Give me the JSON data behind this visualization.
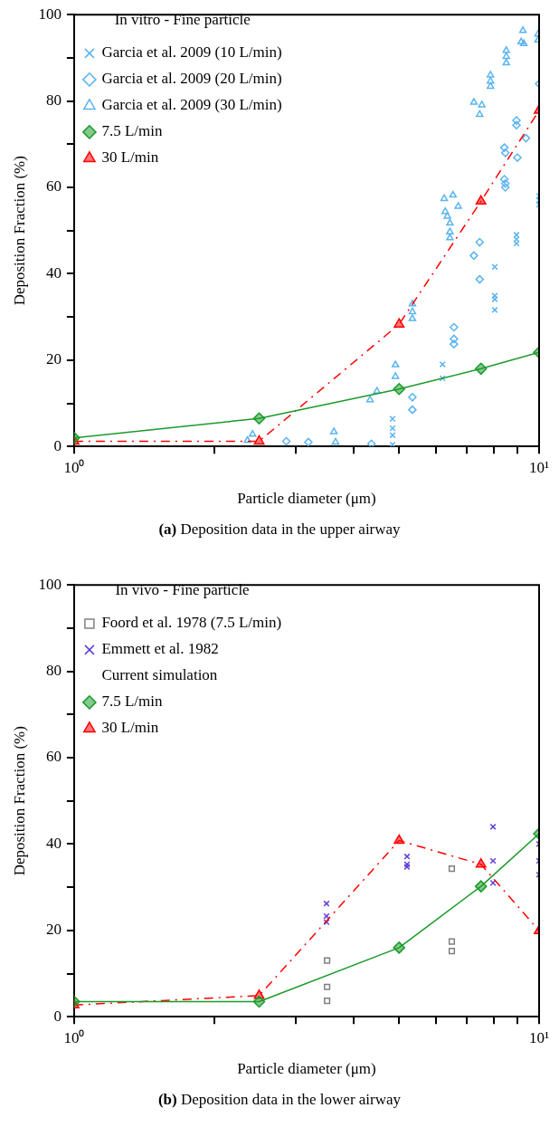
{
  "chart_data": [
    {
      "type": "line",
      "title": "(a) Deposition data in the upper airway",
      "xlabel": "Particle diameter (μm)",
      "ylabel": "Deposition Fraction (%)",
      "legend_title": "In vitro - Fine particle",
      "log": "x",
      "grid": false,
      "legend": "top left",
      "xlim": [
        1,
        10
      ],
      "xticks": [
        {
          "value": 1,
          "label": "10⁰"
        },
        {
          "value": 2,
          "label": null
        },
        {
          "value": 3,
          "label": null
        },
        {
          "value": 4,
          "label": null
        },
        {
          "value": 5,
          "label": null
        },
        {
          "value": 6,
          "label": null
        },
        {
          "value": 7,
          "label": null
        },
        {
          "value": 8,
          "label": null
        },
        {
          "value": 9,
          "label": null
        },
        {
          "value": 10,
          "label": "10¹"
        }
      ],
      "ylim": [
        0,
        100
      ],
      "yticks": [
        0,
        {
          "value": 10,
          "label": null
        },
        20,
        {
          "value": 30,
          "label": null
        },
        40,
        {
          "value": 50,
          "label": null
        },
        60,
        {
          "value": 70,
          "label": null
        },
        80,
        {
          "value": 90,
          "label": null
        },
        100
      ],
      "series": [
        {
          "name": "Garcia et al. 2009 (10 L/min)",
          "type": "scatter",
          "marker": "cross",
          "color": "#5ab4f0",
          "x": [
            4.84,
            4.84,
            4.84,
            4.84,
            6.2,
            6.2,
            8.03,
            8.03,
            8.03,
            8.03,
            8.94,
            8.94,
            8.94,
            10,
            10,
            10
          ],
          "values": [
            6.4,
            4.2,
            2.6,
            0.4,
            19,
            15.8,
            41.6,
            34.9,
            34.1,
            31.6,
            49,
            48,
            47,
            58,
            57,
            56
          ]
        },
        {
          "name": "Garcia et al. 2009 (20 L/min)",
          "type": "scatter",
          "marker": "diamond",
          "color": "#5ab4f0",
          "x": [
            2.86,
            3.19,
            4.36,
            5.34,
            5.34,
            6.56,
            6.56,
            6.56,
            7.45,
            7.24,
            7.45,
            8.42,
            8.46,
            8.98,
            8.42,
            8.46,
            8.46,
            8.94,
            8.94,
            9.37,
            10
          ],
          "values": [
            1.2,
            1,
            0.6,
            11.4,
            8.5,
            27.6,
            24.9,
            23.7,
            47.3,
            44.2,
            38.7,
            69.2,
            68,
            66.9,
            61.9,
            60.9,
            60,
            75.5,
            74.4,
            71.4,
            84
          ]
        },
        {
          "name": "Garcia et al. 2009 (30 L/min)",
          "type": "scatter",
          "marker": "triangle",
          "color": "#5ab4f0",
          "x": [
            2.36,
            2.42,
            3.62,
            3.65,
            4.33,
            4.48,
            4.91,
            4.91,
            5.34,
            5.34,
            5.34,
            6.25,
            6.53,
            6.7,
            6.28,
            6.35,
            6.43,
            6.43,
            6.43,
            7.24,
            7.53,
            7.45,
            7.86,
            7.86,
            7.86,
            8.5,
            8.5,
            8.5,
            9.23,
            9.15,
            9.27,
            9.95,
            9.95
          ],
          "values": [
            1.4,
            2.8,
            3.4,
            1,
            10.8,
            12.8,
            18.9,
            16.2,
            33,
            31.2,
            29.6,
            57.4,
            58.2,
            55.6,
            54.4,
            53.3,
            51.7,
            49.7,
            48.3,
            79.7,
            79.1,
            76.9,
            86,
            84.6,
            83.4,
            91.7,
            90.3,
            88.8,
            96.3,
            93.7,
            93.3,
            95.5,
            94.1
          ]
        },
        {
          "name": "7.5 L/min",
          "marker": "diamond",
          "line_style": "solid",
          "color": "#1a9a2a",
          "x": [
            1,
            2.5,
            5,
            7.5,
            10
          ],
          "values": [
            2,
            6.5,
            13.3,
            18,
            21.8
          ]
        },
        {
          "name": "30 L/min",
          "marker": "triangle",
          "line_style": "dashed",
          "color": "#ff0000",
          "x": [
            1,
            2.5,
            5,
            7.5,
            10
          ],
          "values": [
            1.2,
            1.2,
            28.3,
            56.8,
            77.8
          ]
        }
      ]
    },
    {
      "type": "line",
      "title": "(b) Deposition data in the lower airway",
      "xlabel": "Particle diameter (μm)",
      "ylabel": "Deposition Fraction (%)",
      "legend_title": "In vivo - Fine particle",
      "annotations": [
        "Current simulation"
      ],
      "log": "x",
      "grid": false,
      "legend": "top left",
      "xlim": [
        1,
        10
      ],
      "xticks": [
        {
          "value": 1,
          "label": "10⁰"
        },
        {
          "value": 2,
          "label": null
        },
        {
          "value": 3,
          "label": null
        },
        {
          "value": 4,
          "label": null
        },
        {
          "value": 5,
          "label": null
        },
        {
          "value": 6,
          "label": null
        },
        {
          "value": 7,
          "label": null
        },
        {
          "value": 8,
          "label": null
        },
        {
          "value": 9,
          "label": null
        },
        {
          "value": 10,
          "label": "10¹"
        }
      ],
      "ylim": [
        0,
        100
      ],
      "yticks": [
        0,
        {
          "value": 10,
          "label": null
        },
        20,
        {
          "value": 30,
          "label": null
        },
        40,
        {
          "value": 50,
          "label": null
        },
        60,
        {
          "value": 70,
          "label": null
        },
        80,
        {
          "value": 90,
          "label": null
        },
        100
      ],
      "series": [
        {
          "name": "Foord et al. 1978 (7.5 L/min)",
          "type": "scatter",
          "marker": "square",
          "color": "#808080",
          "x": [
            3.5,
            3.5,
            3.5,
            6.49,
            6.49,
            6.49
          ],
          "values": [
            13,
            6.9,
            3.7,
            34.3,
            17.4,
            15.2
          ]
        },
        {
          "name": "Emmett et al. 1982",
          "type": "scatter",
          "marker": "cross",
          "color": "#6040d8",
          "x": [
            3.49,
            3.49,
            3.49,
            5.2,
            5.2,
            5.2,
            7.96,
            7.96,
            7.96,
            10,
            10,
            10
          ],
          "values": [
            26.2,
            23.3,
            21.9,
            37.1,
            35.3,
            34.7,
            44,
            36.1,
            31,
            40,
            36.1,
            32.9
          ]
        },
        {
          "name": "7.5 L/min",
          "marker": "diamond",
          "line_style": "solid",
          "color": "#1a9a2a",
          "x": [
            1,
            2.5,
            5,
            7.5,
            10
          ],
          "values": [
            3.5,
            3.5,
            16,
            30.2,
            42.4
          ]
        },
        {
          "name": "30 L/min",
          "marker": "triangle",
          "line_style": "dashed",
          "color": "#ff0000",
          "x": [
            1,
            2.5,
            5,
            7.5,
            10
          ],
          "values": [
            2.7,
            4.9,
            40.8,
            35.3,
            19.9
          ]
        }
      ]
    }
  ]
}
